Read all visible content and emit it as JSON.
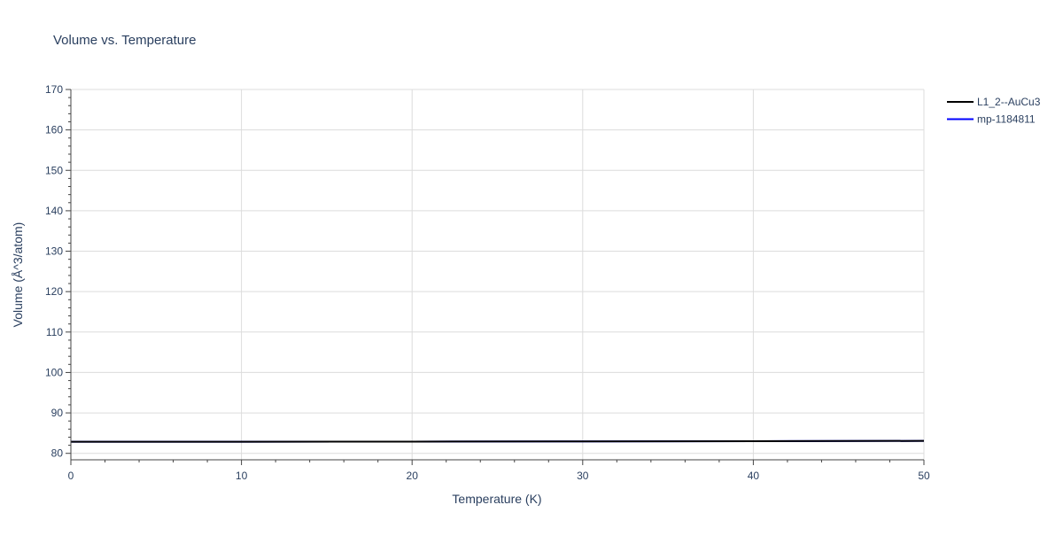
{
  "chart_data": {
    "type": "line",
    "title": "Volume vs. Temperature",
    "xlabel": "Temperature (K)",
    "ylabel": "Volume (Å^3/atom)",
    "xlim": [
      0,
      50
    ],
    "ylim": [
      78.4,
      170
    ],
    "xticks": [
      0,
      10,
      20,
      30,
      40,
      50
    ],
    "yticks": [
      80,
      90,
      100,
      110,
      120,
      130,
      140,
      150,
      160,
      170
    ],
    "grid": true,
    "legend_position": "top-right",
    "series": [
      {
        "name": "L1_2--AuCu3",
        "color": "#000000",
        "x": [
          0,
          10,
          20,
          30,
          40,
          50
        ],
        "y": [
          82.86,
          82.87,
          82.9,
          82.95,
          83.01,
          83.08
        ]
      },
      {
        "name": "mp-1184811",
        "color": "#0000ff",
        "x": [
          0,
          10,
          20,
          30,
          40,
          50
        ],
        "y": [
          82.86,
          82.87,
          82.9,
          82.95,
          83.01,
          83.08
        ]
      }
    ]
  }
}
